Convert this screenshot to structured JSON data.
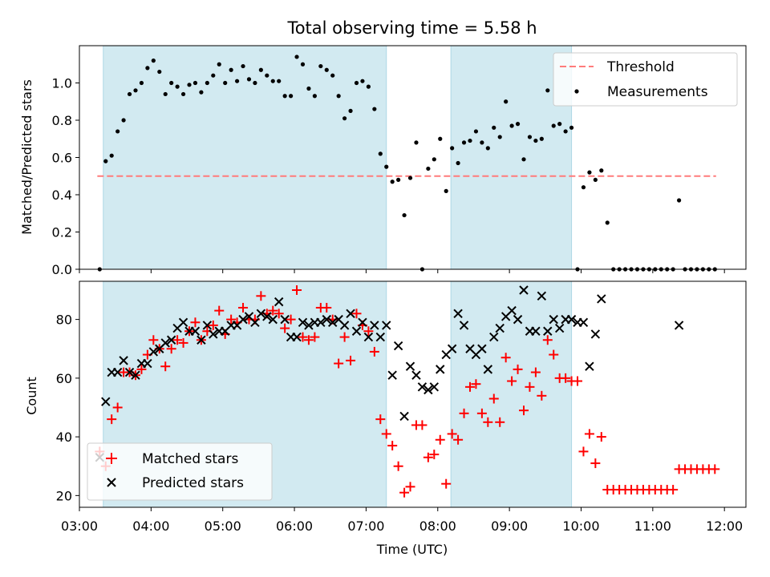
{
  "chart_data": [
    {
      "type": "scatter",
      "title": "Total observing time = 5.58 h",
      "ylabel": "Matched/Predicted stars",
      "xlim": [
        "03:00",
        "12:18"
      ],
      "ylim": [
        0,
        1.2
      ],
      "yticks": [
        0.0,
        0.2,
        0.4,
        0.6,
        0.8,
        1.0
      ],
      "ytick_labels": [
        "0.0",
        "0.2",
        "0.4",
        "0.6",
        "0.8",
        "1.0"
      ],
      "shaded_intervals": [
        [
          "03:20",
          "07:17"
        ],
        [
          "08:11",
          "09:52"
        ]
      ],
      "shade_color": "#add8e6",
      "threshold": 0.5,
      "threshold_x": [
        "03:15",
        "11:53"
      ],
      "legend": "top-right",
      "legend_entries": [
        "Threshold",
        "Measurements"
      ],
      "series": [
        {
          "name": "Threshold",
          "style": "dashed-line",
          "color": "#ff7b7b",
          "x": [
            "03:15",
            "11:53"
          ],
          "y": [
            0.5,
            0.5
          ]
        },
        {
          "name": "Measurements",
          "style": "dots",
          "color": "#000000",
          "x": [
            "03:17",
            "03:22",
            "03:27",
            "03:32",
            "03:37",
            "03:42",
            "03:47",
            "03:52",
            "03:57",
            "04:02",
            "04:07",
            "04:12",
            "04:17",
            "04:22",
            "04:27",
            "04:32",
            "04:37",
            "04:42",
            "04:47",
            "04:52",
            "04:57",
            "05:02",
            "05:07",
            "05:12",
            "05:17",
            "05:22",
            "05:27",
            "05:32",
            "05:37",
            "05:42",
            "05:47",
            "05:52",
            "05:57",
            "06:02",
            "06:07",
            "06:12",
            "06:17",
            "06:22",
            "06:27",
            "06:32",
            "06:37",
            "06:42",
            "06:47",
            "06:52",
            "06:57",
            "07:02",
            "07:07",
            "07:12",
            "07:17",
            "07:22",
            "07:27",
            "07:32",
            "07:37",
            "07:42",
            "07:47",
            "07:52",
            "07:57",
            "08:02",
            "08:07",
            "08:12",
            "08:17",
            "08:22",
            "08:27",
            "08:32",
            "08:37",
            "08:42",
            "08:47",
            "08:52",
            "08:57",
            "09:02",
            "09:07",
            "09:12",
            "09:17",
            "09:22",
            "09:27",
            "09:32",
            "09:37",
            "09:42",
            "09:47",
            "09:52",
            "09:57",
            "10:02",
            "10:07",
            "10:12",
            "10:17",
            "10:22",
            "10:27",
            "10:32",
            "10:37",
            "10:42",
            "10:47",
            "10:52",
            "10:57",
            "11:02",
            "11:07",
            "11:12",
            "11:17",
            "11:22",
            "11:27",
            "11:32",
            "11:37",
            "11:42",
            "11:47",
            "11:52"
          ],
          "y": [
            0.0,
            0.58,
            0.61,
            0.74,
            0.8,
            0.94,
            0.96,
            1.0,
            1.08,
            1.12,
            1.06,
            0.94,
            1.0,
            0.98,
            0.94,
            0.99,
            1.0,
            0.95,
            1.0,
            1.04,
            1.1,
            1.0,
            1.07,
            1.01,
            1.09,
            1.02,
            1.0,
            1.07,
            1.04,
            1.01,
            1.01,
            0.93,
            0.93,
            1.14,
            1.1,
            0.97,
            0.93,
            1.09,
            1.07,
            1.04,
            0.93,
            0.81,
            0.85,
            1.0,
            1.01,
            0.98,
            0.86,
            0.62,
            0.55,
            0.47,
            0.48,
            0.29,
            0.49,
            0.68,
            0.0,
            0.54,
            0.59,
            0.7,
            0.42,
            0.65,
            0.57,
            0.68,
            0.69,
            0.74,
            0.68,
            0.65,
            0.76,
            0.71,
            0.9,
            0.77,
            0.78,
            0.59,
            0.71,
            0.69,
            0.7,
            0.96,
            0.77,
            0.78,
            0.74,
            0.76,
            0.0,
            0.44,
            0.52,
            0.48,
            0.53,
            0.25,
            0.0,
            0.0,
            0.0,
            0.0,
            0.0,
            0.0,
            0.0,
            0.0,
            0.0,
            0.0,
            0.0,
            0.37,
            0.0,
            0.0,
            0.0,
            0.0,
            0.0,
            0.0
          ]
        }
      ]
    },
    {
      "type": "scatter",
      "xlabel": "Time (UTC)",
      "ylabel": "Count",
      "xlim": [
        "03:00",
        "12:18"
      ],
      "ylim": [
        16,
        93
      ],
      "yticks": [
        20,
        40,
        60,
        80
      ],
      "xticks": [
        "03:00",
        "04:00",
        "05:00",
        "06:00",
        "07:00",
        "08:00",
        "09:00",
        "10:00",
        "11:00",
        "12:00"
      ],
      "shaded_intervals": [
        [
          "03:20",
          "07:17"
        ],
        [
          "08:11",
          "09:52"
        ]
      ],
      "shade_color": "#add8e6",
      "legend": "bottom-left",
      "legend_entries": [
        "Matched stars",
        "Predicted stars"
      ],
      "x": [
        "03:17",
        "03:22",
        "03:27",
        "03:32",
        "03:37",
        "03:42",
        "03:47",
        "03:52",
        "03:57",
        "04:02",
        "04:07",
        "04:12",
        "04:17",
        "04:22",
        "04:27",
        "04:32",
        "04:37",
        "04:42",
        "04:47",
        "04:52",
        "04:57",
        "05:02",
        "05:07",
        "05:12",
        "05:17",
        "05:22",
        "05:27",
        "05:32",
        "05:37",
        "05:42",
        "05:47",
        "05:52",
        "05:57",
        "06:02",
        "06:07",
        "06:12",
        "06:17",
        "06:22",
        "06:27",
        "06:32",
        "06:37",
        "06:42",
        "06:47",
        "06:52",
        "06:57",
        "07:02",
        "07:07",
        "07:12",
        "07:17",
        "07:22",
        "07:27",
        "07:32",
        "07:37",
        "07:42",
        "07:47",
        "07:52",
        "07:57",
        "08:02",
        "08:07",
        "08:12",
        "08:17",
        "08:22",
        "08:27",
        "08:32",
        "08:37",
        "08:42",
        "08:47",
        "08:52",
        "08:57",
        "09:02",
        "09:07",
        "09:12",
        "09:17",
        "09:22",
        "09:27",
        "09:32",
        "09:37",
        "09:42",
        "09:47",
        "09:52",
        "09:57",
        "10:02",
        "10:07",
        "10:12",
        "10:17",
        "10:22",
        "10:27",
        "10:32",
        "10:37",
        "10:42",
        "10:47",
        "10:52",
        "10:57",
        "11:02",
        "11:07",
        "11:12",
        "11:17",
        "11:22",
        "11:27",
        "11:32",
        "11:37",
        "11:42",
        "11:47",
        "11:52"
      ],
      "series": [
        {
          "name": "Matched stars",
          "marker": "+",
          "color": "#ff0000",
          "values": [
            35,
            30,
            46,
            50,
            62,
            62,
            61,
            63,
            68,
            73,
            70,
            64,
            70,
            73,
            72,
            76,
            79,
            73,
            76,
            78,
            83,
            75,
            80,
            79,
            84,
            80,
            80,
            88,
            82,
            83,
            82,
            77,
            80,
            90,
            74,
            73,
            74,
            84,
            84,
            80,
            65,
            74,
            66,
            82,
            78,
            76,
            69,
            46,
            41,
            37,
            30,
            21,
            23,
            44,
            44,
            33,
            34,
            39,
            24,
            41,
            39,
            48,
            57,
            58,
            48,
            45,
            53,
            45,
            67,
            59,
            63,
            49,
            57,
            62,
            54,
            73,
            68,
            60,
            60,
            59,
            59,
            35,
            41,
            31,
            40,
            22,
            22,
            22,
            22,
            22,
            22,
            22,
            22,
            22,
            22,
            22,
            22,
            29,
            29,
            29,
            29,
            29,
            29,
            29
          ]
        },
        {
          "name": "Predicted stars",
          "marker": "x",
          "color": "#000000",
          "values": [
            33,
            52,
            62,
            62,
            66,
            62,
            61,
            65,
            65,
            69,
            70,
            72,
            73,
            77,
            79,
            76,
            76,
            73,
            78,
            75,
            76,
            76,
            78,
            78,
            80,
            81,
            79,
            82,
            81,
            80,
            86,
            80,
            74,
            74,
            79,
            78,
            79,
            79,
            80,
            79,
            80,
            78,
            82,
            76,
            79,
            74,
            78,
            74,
            78,
            61,
            71,
            47,
            64,
            61,
            57,
            56,
            57,
            63,
            68,
            70,
            82,
            78,
            70,
            68,
            70,
            63,
            74,
            77,
            81,
            83,
            80,
            90,
            76,
            76,
            88,
            76,
            80,
            77,
            80,
            80,
            79,
            79,
            64,
            75,
            87,
            78
          ]
        }
      ],
      "predicted_x": [
        "03:17",
        "03:22",
        "03:27",
        "03:32",
        "03:37",
        "03:42",
        "03:47",
        "03:52",
        "03:57",
        "04:02",
        "04:07",
        "04:12",
        "04:17",
        "04:22",
        "04:27",
        "04:32",
        "04:37",
        "04:42",
        "04:47",
        "04:52",
        "04:57",
        "05:02",
        "05:07",
        "05:12",
        "05:17",
        "05:22",
        "05:27",
        "05:32",
        "05:37",
        "05:42",
        "05:47",
        "05:52",
        "05:57",
        "06:02",
        "06:07",
        "06:12",
        "06:17",
        "06:22",
        "06:27",
        "06:32",
        "06:37",
        "06:42",
        "06:47",
        "06:52",
        "06:57",
        "07:02",
        "07:07",
        "07:12",
        "07:17",
        "07:22",
        "07:27",
        "07:32",
        "07:37",
        "07:42",
        "07:47",
        "07:52",
        "07:57",
        "08:02",
        "08:07",
        "08:12",
        "08:17",
        "08:22",
        "08:27",
        "08:32",
        "08:37",
        "08:42",
        "08:47",
        "08:52",
        "08:57",
        "09:02",
        "09:07",
        "09:12",
        "09:17",
        "09:22",
        "09:27",
        "09:32",
        "09:37",
        "09:42",
        "09:47",
        "09:52",
        "09:57",
        "10:02",
        "10:07",
        "10:12",
        "10:17",
        "11:22"
      ]
    }
  ]
}
